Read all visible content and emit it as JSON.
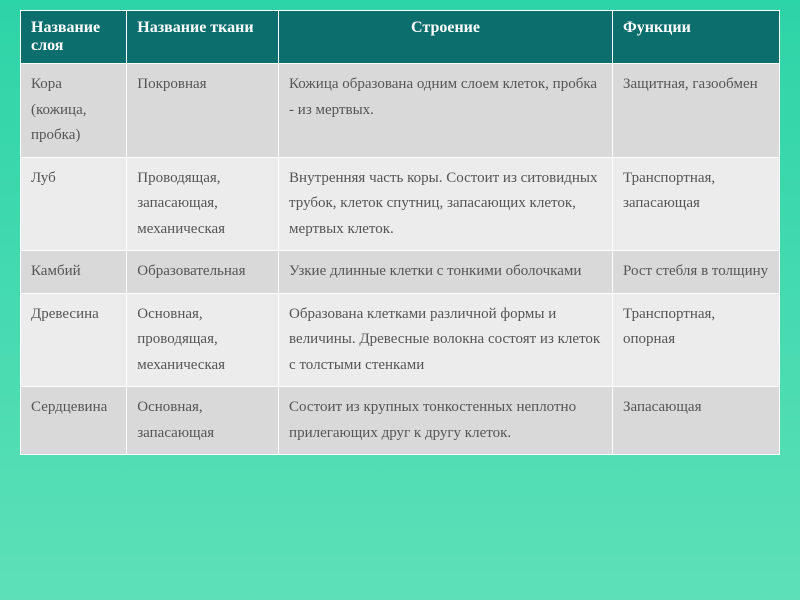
{
  "table": {
    "columns": [
      "Название слоя",
      "Название ткани",
      "Строение",
      "Функции"
    ],
    "rows": [
      {
        "layer": "Кора (кожица, пробка)",
        "tissue": "Покровная",
        "structure": "Кожица образована одним слоем клеток, пробка  - из мертвых.",
        "function": "Защитная, газообмен"
      },
      {
        "layer": "Луб",
        "tissue": "Проводящая, запасающая, механическая",
        "structure": "Внутренняя часть коры. Состоит из ситовидных трубок, клеток спутниц, запасающих клеток, мертвых клеток.",
        "function": "Транспортная, запасающая"
      },
      {
        "layer": "Камбий",
        "tissue": "Образовательная",
        "structure": "Узкие длинные клетки с тонкими оболочками",
        "function": "Рост стебля в толщину"
      },
      {
        "layer": "Древесина",
        "tissue": "Основная, проводящая, механическая",
        "structure": "Образована клетками различной формы и величины. Древесные волокна состоят из клеток с толстыми стенками",
        "function": "Транспортная, опорная"
      },
      {
        "layer": "Сердцевина",
        "tissue": "Основная, запасающая",
        "structure": "Состоит из крупных тонкостенных неплотно прилегающих друг к другу клеток.",
        "function": "Запасающая"
      }
    ],
    "header_bg": "#0d6e6e",
    "header_color": "#ffffff",
    "row_odd_bg": "#d9d9d9",
    "row_even_bg": "#ececec",
    "border_color": "#ffffff",
    "cell_text_color": "#555555",
    "page_bg_top": "#2dd4a7",
    "page_bg_bottom": "#5de0b8",
    "font_family": "Times New Roman",
    "header_fontsize": 16,
    "cell_fontsize": 15
  }
}
